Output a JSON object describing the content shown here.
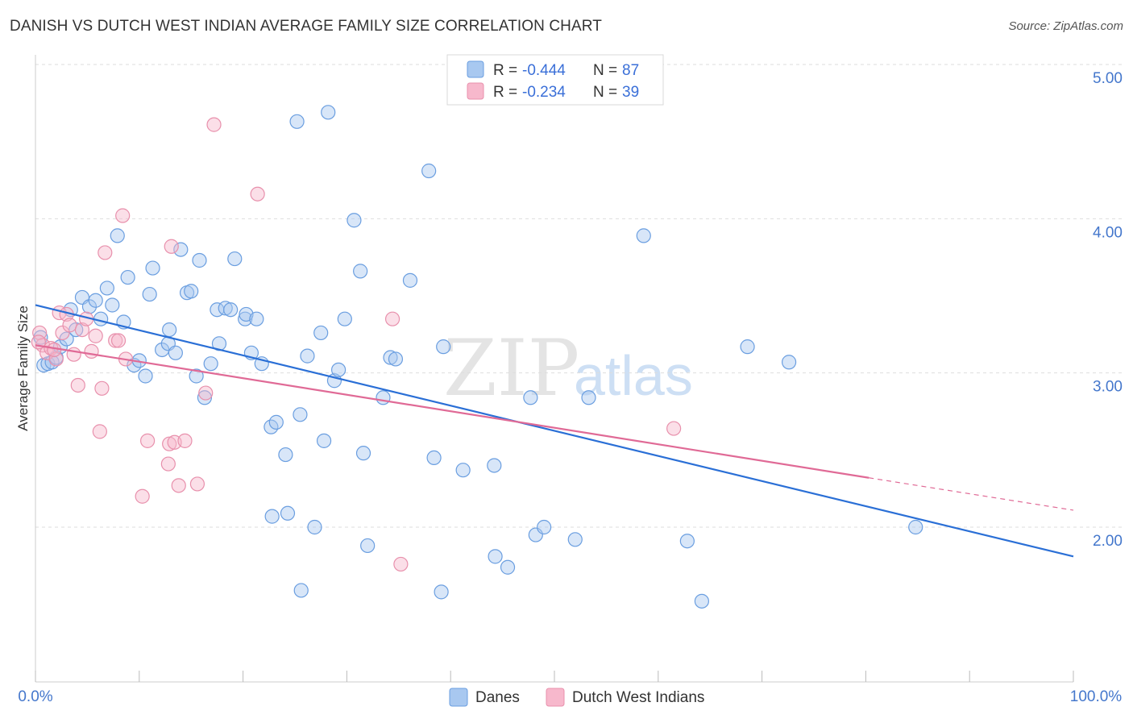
{
  "title": "DANISH VS DUTCH WEST INDIAN AVERAGE FAMILY SIZE CORRELATION CHART",
  "source": "Source: ZipAtlas.com",
  "watermark": {
    "zip": "ZIP",
    "atlas": "atlas"
  },
  "legend_top": [
    {
      "r_label": "R = ",
      "r_value": "-0.444",
      "n_label": "N = ",
      "n_value": "87"
    },
    {
      "r_label": "R = ",
      "r_value": "-0.234",
      "n_label": "N = ",
      "n_value": "39"
    }
  ],
  "legend_bottom": [
    "Danes",
    "Dutch West Indians"
  ],
  "colors": {
    "danes_fill": "#a8c8f0",
    "danes_stroke": "#6a9ee0",
    "danes_line": "#2a6fd6",
    "dwi_fill": "#f7b8cc",
    "dwi_stroke": "#e890ac",
    "dwi_line": "#e06a96",
    "grid": "#dddddd",
    "axis_text": "#4477cc"
  },
  "chart_data": {
    "type": "scatter",
    "title": "DANISH VS DUTCH WEST INDIAN AVERAGE FAMILY SIZE CORRELATION CHART",
    "xlabel": "",
    "ylabel": "Average Family Size",
    "xlim": [
      0,
      100
    ],
    "ylim": [
      1.0,
      5.1
    ],
    "x_tick_labels": [
      "0.0%",
      "100.0%"
    ],
    "y_ticks": [
      2.0,
      3.0,
      4.0,
      5.0
    ],
    "y_tick_labels": [
      "2.00",
      "3.00",
      "4.00",
      "5.00"
    ],
    "grid": true,
    "legend_position": "top-center",
    "series": [
      {
        "name": "Danes",
        "r": -0.444,
        "n": 87,
        "trend": {
          "x": [
            0,
            100
          ],
          "y": [
            3.44,
            1.81
          ]
        },
        "points": [
          [
            0.5,
            3.23
          ],
          [
            0.8,
            3.05
          ],
          [
            1.2,
            3.06
          ],
          [
            1.6,
            3.07
          ],
          [
            2.0,
            3.1
          ],
          [
            2.4,
            3.17
          ],
          [
            3.0,
            3.22
          ],
          [
            3.4,
            3.41
          ],
          [
            3.9,
            3.28
          ],
          [
            4.5,
            3.49
          ],
          [
            5.2,
            3.43
          ],
          [
            5.8,
            3.47
          ],
          [
            6.3,
            3.35
          ],
          [
            6.9,
            3.55
          ],
          [
            7.4,
            3.44
          ],
          [
            7.9,
            3.89
          ],
          [
            8.5,
            3.33
          ],
          [
            8.9,
            3.62
          ],
          [
            9.5,
            3.05
          ],
          [
            10.0,
            3.08
          ],
          [
            10.6,
            2.98
          ],
          [
            11.0,
            3.51
          ],
          [
            11.3,
            3.68
          ],
          [
            12.2,
            3.15
          ],
          [
            12.8,
            3.19
          ],
          [
            12.9,
            3.28
          ],
          [
            13.5,
            3.13
          ],
          [
            14.0,
            3.8
          ],
          [
            14.6,
            3.52
          ],
          [
            15.0,
            3.53
          ],
          [
            15.5,
            2.98
          ],
          [
            15.8,
            3.73
          ],
          [
            16.3,
            2.84
          ],
          [
            16.9,
            3.06
          ],
          [
            17.5,
            3.41
          ],
          [
            17.7,
            3.19
          ],
          [
            18.3,
            3.42
          ],
          [
            18.8,
            3.41
          ],
          [
            19.2,
            3.74
          ],
          [
            20.2,
            3.35
          ],
          [
            20.3,
            3.38
          ],
          [
            20.8,
            3.13
          ],
          [
            21.3,
            3.35
          ],
          [
            21.8,
            3.06
          ],
          [
            22.7,
            2.65
          ],
          [
            23.2,
            2.68
          ],
          [
            22.8,
            2.07
          ],
          [
            24.1,
            2.47
          ],
          [
            24.3,
            2.09
          ],
          [
            25.2,
            4.63
          ],
          [
            25.5,
            2.73
          ],
          [
            25.6,
            1.59
          ],
          [
            26.2,
            3.11
          ],
          [
            26.9,
            2.0
          ],
          [
            27.5,
            3.26
          ],
          [
            27.8,
            2.56
          ],
          [
            28.2,
            4.69
          ],
          [
            28.8,
            2.95
          ],
          [
            29.2,
            3.02
          ],
          [
            29.8,
            3.35
          ],
          [
            30.7,
            3.99
          ],
          [
            31.3,
            3.66
          ],
          [
            31.6,
            2.48
          ],
          [
            32.0,
            1.88
          ],
          [
            33.5,
            2.84
          ],
          [
            34.2,
            3.1
          ],
          [
            34.7,
            3.09
          ],
          [
            36.1,
            3.6
          ],
          [
            37.9,
            4.31
          ],
          [
            38.4,
            2.45
          ],
          [
            39.1,
            1.58
          ],
          [
            39.3,
            3.17
          ],
          [
            41.2,
            2.37
          ],
          [
            44.2,
            2.4
          ],
          [
            44.3,
            1.81
          ],
          [
            45.5,
            1.74
          ],
          [
            47.7,
            2.84
          ],
          [
            48.2,
            1.95
          ],
          [
            49.0,
            2.0
          ],
          [
            52.0,
            1.92
          ],
          [
            53.3,
            2.84
          ],
          [
            58.6,
            3.89
          ],
          [
            62.8,
            1.91
          ],
          [
            64.2,
            1.52
          ],
          [
            68.6,
            3.17
          ],
          [
            72.6,
            3.07
          ],
          [
            84.8,
            2.0
          ]
        ]
      },
      {
        "name": "Dutch West Indians",
        "r": -0.234,
        "n": 39,
        "trend": {
          "x": [
            0,
            80.3
          ],
          "y": [
            3.18,
            2.32
          ]
        },
        "trend_dashed": {
          "x": [
            80.3,
            100
          ],
          "y": [
            2.32,
            2.11
          ]
        },
        "points": [
          [
            0.4,
            3.26
          ],
          [
            0.7,
            3.18
          ],
          [
            1.1,
            3.13
          ],
          [
            1.5,
            3.16
          ],
          [
            2.0,
            3.09
          ],
          [
            2.3,
            3.39
          ],
          [
            2.6,
            3.26
          ],
          [
            3.0,
            3.38
          ],
          [
            3.3,
            3.31
          ],
          [
            3.7,
            3.12
          ],
          [
            4.1,
            2.92
          ],
          [
            4.5,
            3.28
          ],
          [
            4.9,
            3.35
          ],
          [
            5.4,
            3.14
          ],
          [
            5.8,
            3.24
          ],
          [
            6.2,
            2.62
          ],
          [
            6.4,
            2.9
          ],
          [
            6.7,
            3.78
          ],
          [
            7.7,
            3.21
          ],
          [
            8.0,
            3.21
          ],
          [
            8.4,
            4.02
          ],
          [
            8.7,
            3.09
          ],
          [
            10.3,
            2.2
          ],
          [
            10.8,
            2.56
          ],
          [
            12.8,
            2.41
          ],
          [
            12.9,
            2.54
          ],
          [
            13.1,
            3.82
          ],
          [
            13.4,
            2.55
          ],
          [
            13.8,
            2.27
          ],
          [
            14.4,
            2.56
          ],
          [
            15.6,
            2.28
          ],
          [
            16.4,
            2.87
          ],
          [
            17.2,
            4.61
          ],
          [
            21.4,
            4.16
          ],
          [
            34.4,
            3.35
          ],
          [
            35.2,
            1.76
          ],
          [
            61.5,
            2.64
          ],
          [
            0.3,
            3.2
          ],
          [
            1.8,
            3.15
          ]
        ]
      }
    ]
  }
}
